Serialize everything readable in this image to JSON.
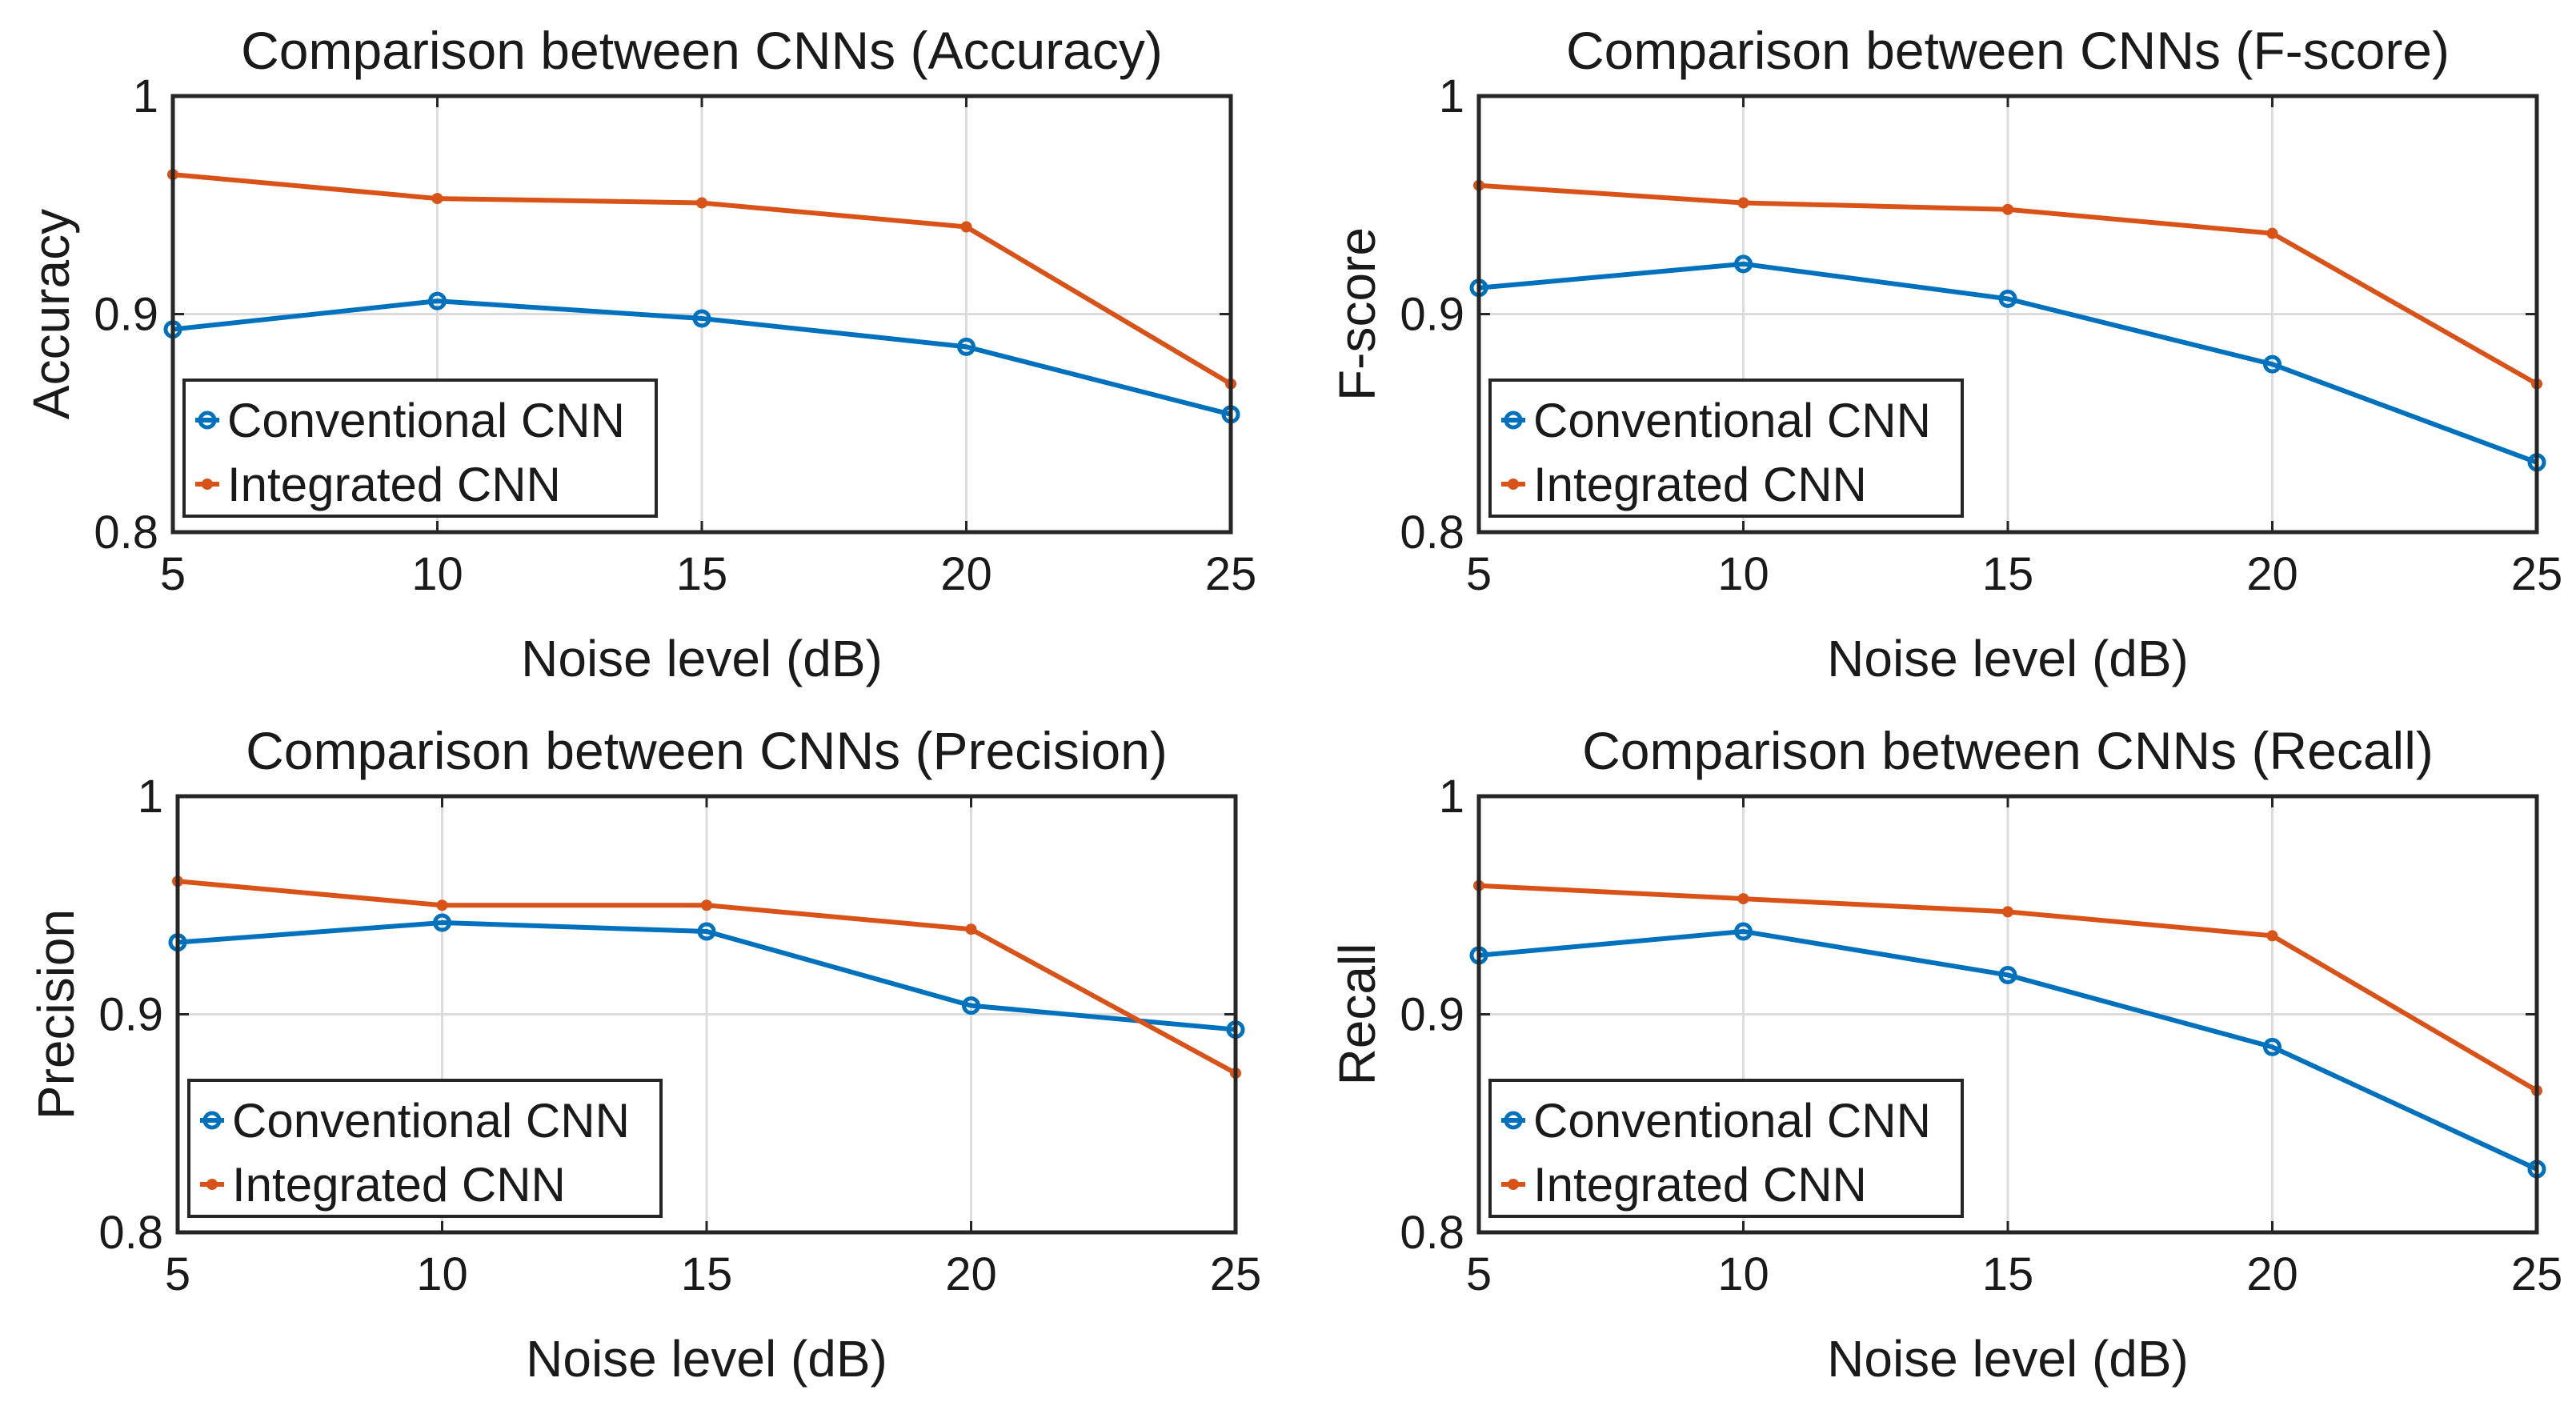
{
  "chart_data": [
    {
      "type": "line",
      "title": "Comparison between CNNs (Accuracy)",
      "xlabel": "Noise level (dB)",
      "ylabel": "Accuracy",
      "x": [
        5,
        10,
        15,
        20,
        25
      ],
      "xticks": [
        "5",
        "10",
        "15",
        "20",
        "25"
      ],
      "yticks": [
        "0.8",
        "0.9",
        "1"
      ],
      "xlim": [
        5,
        25
      ],
      "ylim": [
        0.8,
        1.0
      ],
      "grid": true,
      "legend_position": "bottom-left",
      "series": [
        {
          "name": "Conventional CNN",
          "color": "#0072BD",
          "marker": "circle",
          "values": [
            0.893,
            0.906,
            0.898,
            0.885,
            0.854
          ]
        },
        {
          "name": "Integrated CNN",
          "color": "#D95319",
          "marker": "dot",
          "values": [
            0.964,
            0.953,
            0.951,
            0.94,
            0.868
          ]
        }
      ]
    },
    {
      "type": "line",
      "title": "Comparison between CNNs (F-score)",
      "xlabel": "Noise level (dB)",
      "ylabel": "F-score",
      "x": [
        5,
        10,
        15,
        20,
        25
      ],
      "xticks": [
        "5",
        "10",
        "15",
        "20",
        "25"
      ],
      "yticks": [
        "0.8",
        "0.9",
        "1"
      ],
      "xlim": [
        5,
        25
      ],
      "ylim": [
        0.8,
        1.0
      ],
      "grid": true,
      "legend_position": "bottom-left",
      "series": [
        {
          "name": "Conventional CNN",
          "color": "#0072BD",
          "marker": "circle",
          "values": [
            0.912,
            0.923,
            0.907,
            0.877,
            0.832
          ]
        },
        {
          "name": "Integrated CNN",
          "color": "#D95319",
          "marker": "dot",
          "values": [
            0.959,
            0.951,
            0.948,
            0.937,
            0.868
          ]
        }
      ]
    },
    {
      "type": "line",
      "title": "Comparison between CNNs (Precision)",
      "xlabel": "Noise level (dB)",
      "ylabel": "Precision",
      "x": [
        5,
        10,
        15,
        20,
        25
      ],
      "xticks": [
        "5",
        "10",
        "15",
        "20",
        "25"
      ],
      "yticks": [
        "0.8",
        "0.9",
        "1"
      ],
      "xlim": [
        5,
        25
      ],
      "ylim": [
        0.8,
        1.0
      ],
      "grid": true,
      "legend_position": "bottom-left",
      "series": [
        {
          "name": "Conventional CNN",
          "color": "#0072BD",
          "marker": "circle",
          "values": [
            0.933,
            0.942,
            0.938,
            0.904,
            0.893
          ]
        },
        {
          "name": "Integrated CNN",
          "color": "#D95319",
          "marker": "dot",
          "values": [
            0.961,
            0.95,
            0.95,
            0.939,
            0.873
          ]
        }
      ]
    },
    {
      "type": "line",
      "title": "Comparison between CNNs (Recall)",
      "xlabel": "Noise level (dB)",
      "ylabel": "Recall",
      "x": [
        5,
        10,
        15,
        20,
        25
      ],
      "xticks": [
        "5",
        "10",
        "15",
        "20",
        "25"
      ],
      "yticks": [
        "0.8",
        "0.9",
        "1"
      ],
      "xlim": [
        5,
        25
      ],
      "ylim": [
        0.8,
        1.0
      ],
      "grid": true,
      "legend_position": "bottom-left",
      "series": [
        {
          "name": "Conventional CNN",
          "color": "#0072BD",
          "marker": "circle",
          "values": [
            0.927,
            0.938,
            0.918,
            0.885,
            0.829
          ]
        },
        {
          "name": "Integrated CNN",
          "color": "#D95319",
          "marker": "dot",
          "values": [
            0.959,
            0.953,
            0.947,
            0.936,
            0.865
          ]
        }
      ]
    }
  ]
}
